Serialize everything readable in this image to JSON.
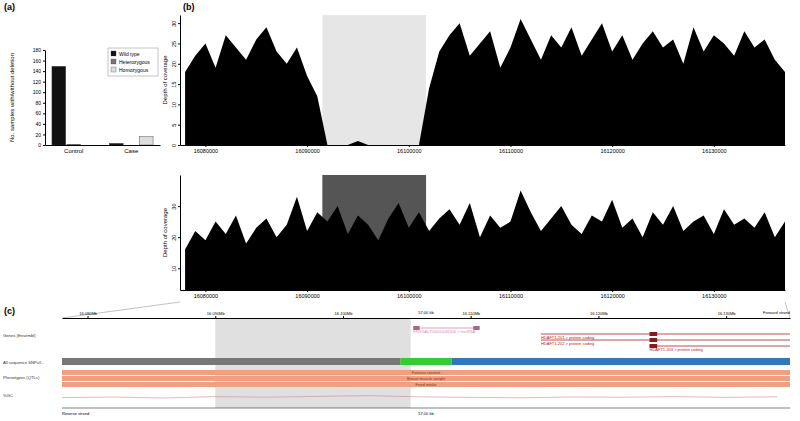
{
  "chart_data": [
    {
      "type": "bar",
      "title": "(a)",
      "ylabel": "No. samples with/without deletion",
      "categories": [
        "Control",
        "Case"
      ],
      "series": [
        {
          "name": "Wild type",
          "color": "#111111",
          "values": [
            149,
            3
          ]
        },
        {
          "name": "Heterozygous",
          "color": "#777777",
          "values": [
            1,
            0
          ]
        },
        {
          "name": "Homozygous",
          "color": "#dddddd",
          "values": [
            0,
            16
          ]
        }
      ],
      "ylim": [
        0,
        180
      ],
      "yticks": [
        0,
        20,
        40,
        60,
        80,
        100,
        120,
        140,
        160,
        180
      ],
      "legend": "top-right"
    },
    {
      "type": "area",
      "title": "(b)",
      "ylabel": "Depth of coverage",
      "color": "#000000",
      "x": [
        16078000,
        16079000,
        16080000,
        16081000,
        16082000,
        16083000,
        16084000,
        16085000,
        16086000,
        16087000,
        16088000,
        16089000,
        16090000,
        16091000,
        16092000,
        16093000,
        16094000,
        16095000,
        16096000,
        16097000,
        16098000,
        16099000,
        16100000,
        16101000,
        16102000,
        16103000,
        16104000,
        16105000,
        16106000,
        16107000,
        16108000,
        16109000,
        16110000,
        16111000,
        16112000,
        16113000,
        16114000,
        16115000,
        16116000,
        16117000,
        16118000,
        16119000,
        16120000,
        16121000,
        16122000,
        16123000,
        16124000,
        16125000,
        16126000,
        16127000,
        16128000,
        16129000,
        16130000,
        16131000,
        16132000,
        16133000,
        16134000,
        16135000,
        16136000,
        16137000
      ],
      "values": [
        18,
        22,
        25,
        19,
        27,
        24,
        21,
        26,
        29,
        23,
        20,
        24,
        17,
        12,
        0,
        0,
        0,
        1,
        0,
        0,
        0,
        0,
        0,
        0,
        14,
        23,
        27,
        30,
        22,
        25,
        28,
        19,
        24,
        31,
        26,
        21,
        27,
        24,
        29,
        22,
        26,
        30,
        23,
        27,
        21,
        25,
        28,
        24,
        26,
        20,
        29,
        23,
        27,
        25,
        22,
        28,
        24,
        26,
        21,
        18
      ],
      "xlim": [
        16077500,
        16137000
      ],
      "xticks": [
        16080000,
        16090000,
        16100000,
        16110000,
        16120000,
        16130000
      ],
      "ylim": [
        0,
        32
      ],
      "yticks": [
        0,
        5,
        10,
        15,
        20,
        25,
        30
      ],
      "shaded_region": {
        "start": 16091500,
        "end": 16101700,
        "color": "#e6e6e6"
      }
    },
    {
      "type": "area",
      "ylabel": "Depth of coverage",
      "color": "#000000",
      "x": [
        16078000,
        16079000,
        16080000,
        16081000,
        16082000,
        16083000,
        16084000,
        16085000,
        16086000,
        16087000,
        16088000,
        16089000,
        16090000,
        16091000,
        16092000,
        16093000,
        16094000,
        16095000,
        16096000,
        16097000,
        16098000,
        16099000,
        16100000,
        16101000,
        16102000,
        16103000,
        16104000,
        16105000,
        16106000,
        16107000,
        16108000,
        16109000,
        16110000,
        16111000,
        16112000,
        16113000,
        16114000,
        16115000,
        16116000,
        16117000,
        16118000,
        16119000,
        16120000,
        16121000,
        16122000,
        16123000,
        16124000,
        16125000,
        16126000,
        16127000,
        16128000,
        16129000,
        16130000,
        16131000,
        16132000,
        16133000,
        16134000,
        16135000,
        16136000,
        16137000
      ],
      "values": [
        16,
        22,
        19,
        25,
        21,
        27,
        18,
        23,
        26,
        20,
        24,
        33,
        22,
        28,
        25,
        30,
        21,
        27,
        24,
        19,
        26,
        31,
        23,
        28,
        22,
        26,
        29,
        24,
        31,
        20,
        27,
        23,
        25,
        35,
        28,
        22,
        26,
        30,
        24,
        21,
        27,
        25,
        32,
        23,
        26,
        20,
        28,
        24,
        30,
        22,
        25,
        27,
        21,
        29,
        24,
        26,
        23,
        28,
        20,
        25
      ],
      "xlim": [
        16077500,
        16137000
      ],
      "xticks": [
        16080000,
        16090000,
        16100000,
        16110000,
        16120000,
        16130000
      ],
      "ylim": [
        3,
        40
      ],
      "yticks": [
        10,
        20,
        30
      ],
      "shaded_region": {
        "start": 16091500,
        "end": 16101700,
        "color": "#555555"
      }
    },
    {
      "type": "genome_browser",
      "title": "(c)",
      "xlim": [
        16078000,
        16135000
      ],
      "xticks": [
        {
          "value": 16080000,
          "label": "16.080Mb"
        },
        {
          "value": 16090000,
          "label": "16.090Mb"
        },
        {
          "value": 16100000,
          "label": "16.100Mb"
        },
        {
          "value": 16110000,
          "label": "16.110Mb"
        },
        {
          "value": 16120000,
          "label": "16.120Mb"
        },
        {
          "value": 16130000,
          "label": "16.130Mb"
        }
      ],
      "scale_labels": [
        "57.00 kb",
        "57.00 kb"
      ],
      "forward_label": "Forward strand",
      "reverse_label": "Reverse strand",
      "track_labels": [
        "Genes (Ensembl)",
        "All sequence SNPs/I...",
        "Phenotypes (QTLs)",
        "%GC"
      ],
      "shaded_region": {
        "start": 16090000,
        "end": 16105300,
        "color": "#e0e0e0"
      },
      "genes": [
        {
          "name": "ENSGALT00000046506 > lincRNA",
          "start": 16105500,
          "end": 16110700,
          "color": "#d98cb3",
          "exons": [
            [
              16105500,
              16106000
            ],
            [
              16110200,
              16110700
            ]
          ]
        },
        {
          "name": "HDAFT1-201 > protein coding",
          "start": 16115500,
          "end": 16135000,
          "color": "#b22222",
          "exons": [
            [
              16124000,
              16124600
            ]
          ]
        },
        {
          "name": "HDAFT1-202 > protein coding",
          "start": 16115500,
          "end": 16135000,
          "color": "#b22222",
          "exons": [
            [
              16124000,
              16124600
            ]
          ]
        },
        {
          "name": "HDAFT1-203 > protein coding",
          "start": 16124000,
          "end": 16135000,
          "color": "#b22222",
          "exons": [
            [
              16124000,
              16124600
            ]
          ]
        }
      ],
      "snp_segments": [
        {
          "start": 16078000,
          "end": 16104500,
          "color": "#777777"
        },
        {
          "start": 16104500,
          "end": 16108500,
          "color": "#33cc33"
        },
        {
          "start": 16108500,
          "end": 16135000,
          "color": "#3377bb"
        }
      ],
      "phenotypes": [
        {
          "name": "Fatness content",
          "start": 16078000,
          "end": 16135000,
          "color": "#f0a080"
        },
        {
          "name": "Breast muscle weight",
          "start": 16078000,
          "end": 16135000,
          "color": "#f0a080"
        },
        {
          "name": "Feed intake",
          "start": 16078000,
          "end": 16135000,
          "color": "#f0a080"
        }
      ],
      "gc": {
        "x": [
          16078000,
          16082000,
          16086000,
          16090000,
          16094000,
          16098000,
          16102000,
          16106000,
          16110000,
          16114000,
          16118000,
          16122000,
          16126000,
          16130000,
          16134000
        ],
        "values": [
          42,
          45,
          40,
          47,
          44,
          48,
          52,
          46,
          43,
          41,
          45,
          44,
          47,
          43,
          46
        ],
        "ylim": [
          20,
          80
        ],
        "color": "#cc8899"
      }
    }
  ]
}
